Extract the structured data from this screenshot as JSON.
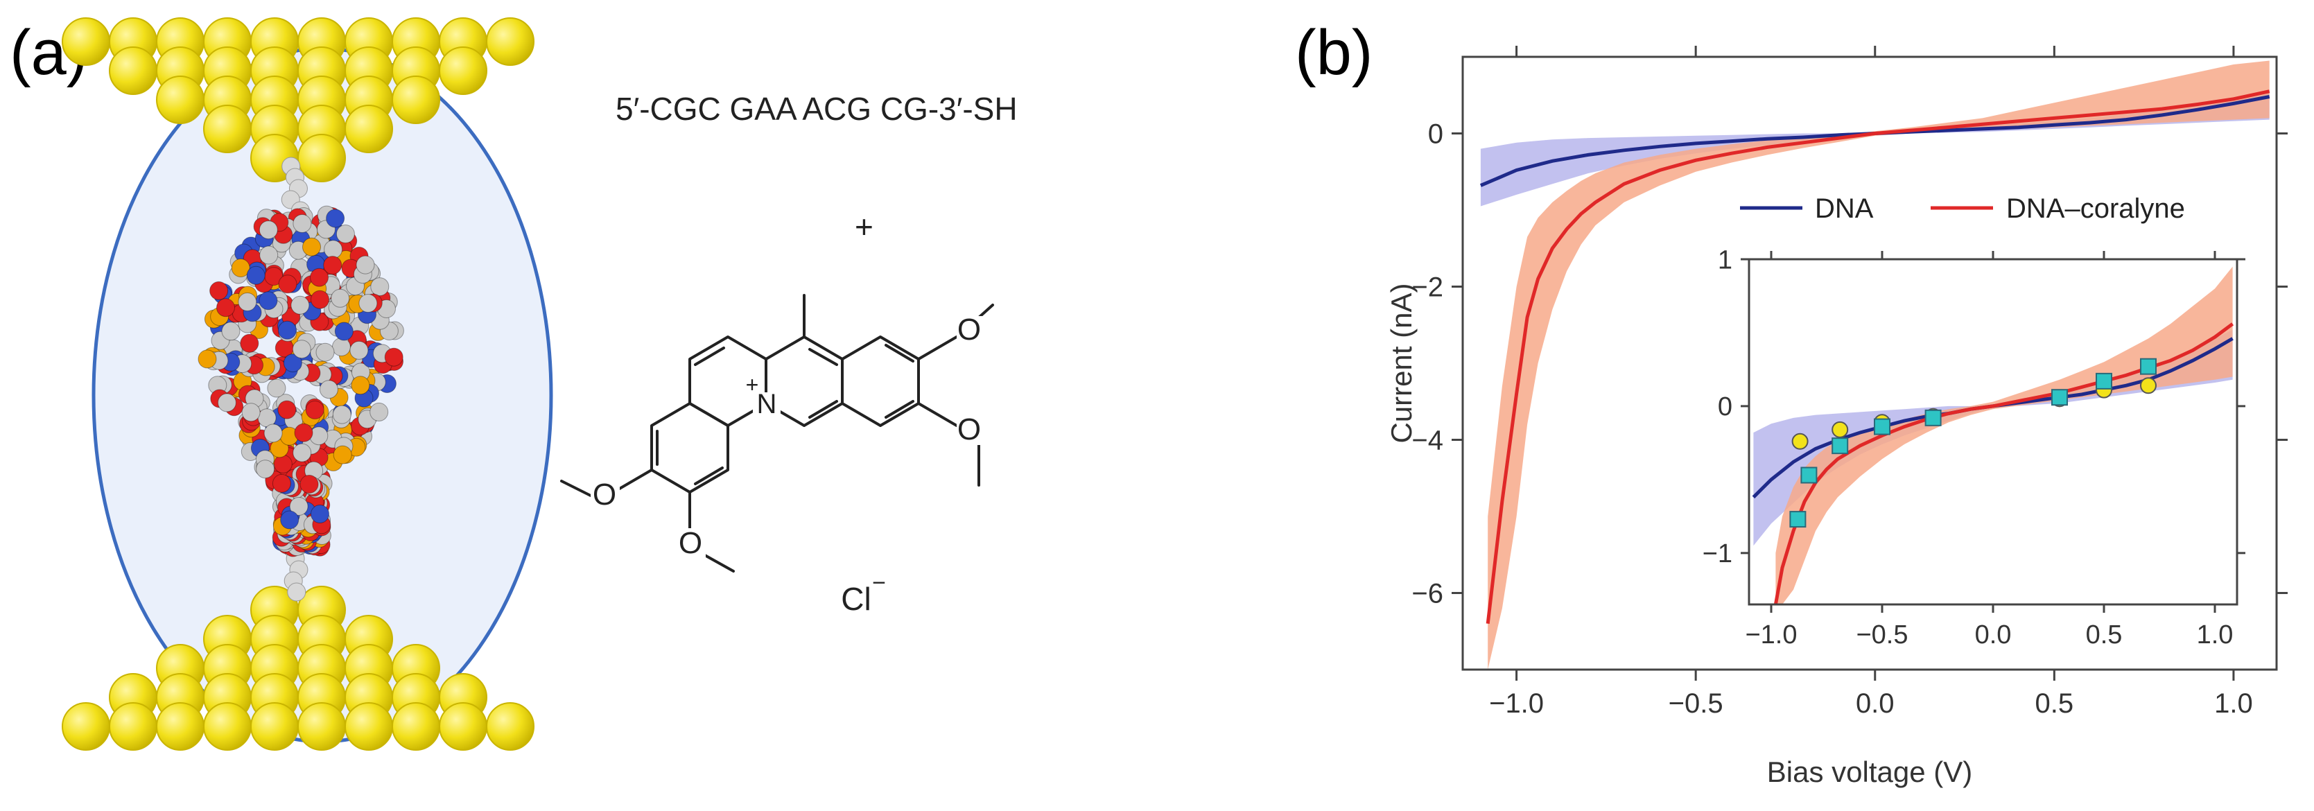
{
  "panel_a": {
    "label": "(a)",
    "sequence": "5′-CGC GAA ACG CG-3′-SH",
    "plus": "+",
    "counterion": "Cl",
    "counterion_charge": "−",
    "nitrogen": "N",
    "nitrogen_charge": "+",
    "oxygen": "O",
    "colors": {
      "gold": "#F2E01A",
      "gold_edge": "#C9B400",
      "ellipse_fill": "#EAF0FB",
      "ellipse_edge": "#3C6CC0",
      "oxygen_atom": "#E02020",
      "nitrogen_atom": "#3050C8",
      "carbon_atom": "#C8C8C8",
      "phosphorus_atom": "#F0A000"
    }
  },
  "panel_b": {
    "label": "(b)"
  },
  "chart_data": [
    {
      "type": "line",
      "title": "",
      "xlabel": "Bias voltage (V)",
      "ylabel": "Current (nA)",
      "xlim": [
        -1.15,
        1.12
      ],
      "ylim": [
        -7.0,
        1.0
      ],
      "xticks": [
        -1.0,
        -0.5,
        0.0,
        0.5,
        1.0
      ],
      "xtick_labels": [
        "−1.0",
        "−0.5",
        "0.0",
        "0.5",
        "1.0"
      ],
      "yticks": [
        0,
        -2,
        -4,
        -6
      ],
      "ytick_labels": [
        "0",
        "−2",
        "−4",
        "−6"
      ],
      "legend_placement": "top-right",
      "grid": false,
      "series": [
        {
          "name": "DNA",
          "color": "#1F2A8A",
          "band_color": "#B7B6EC",
          "x": [
            -1.1,
            -1.0,
            -0.9,
            -0.8,
            -0.7,
            -0.6,
            -0.5,
            -0.4,
            -0.3,
            -0.2,
            -0.1,
            0.0,
            0.1,
            0.2,
            0.3,
            0.4,
            0.5,
            0.6,
            0.7,
            0.8,
            0.9,
            1.0,
            1.1
          ],
          "y": [
            -0.68,
            -0.48,
            -0.36,
            -0.28,
            -0.22,
            -0.17,
            -0.13,
            -0.1,
            -0.07,
            -0.05,
            -0.02,
            0.0,
            0.02,
            0.04,
            0.06,
            0.08,
            0.11,
            0.14,
            0.18,
            0.24,
            0.31,
            0.39,
            0.48
          ],
          "upper": [
            -0.2,
            -0.12,
            -0.08,
            -0.06,
            -0.05,
            -0.04,
            -0.03,
            -0.02,
            -0.01,
            0.0,
            0.0,
            0.01,
            0.04,
            0.07,
            0.1,
            0.13,
            0.16,
            0.2,
            0.25,
            0.31,
            0.38,
            0.46,
            0.55
          ],
          "lower": [
            -0.95,
            -0.8,
            -0.66,
            -0.52,
            -0.42,
            -0.33,
            -0.26,
            -0.2,
            -0.15,
            -0.1,
            -0.05,
            -0.01,
            0.0,
            0.01,
            0.02,
            0.04,
            0.06,
            0.08,
            0.1,
            0.12,
            0.14,
            0.16,
            0.18
          ]
        },
        {
          "name": "DNA–coralyne",
          "color": "#E02828",
          "band_color": "#F7A98A",
          "x": [
            -1.08,
            -1.04,
            -1.0,
            -0.97,
            -0.94,
            -0.9,
            -0.86,
            -0.82,
            -0.78,
            -0.74,
            -0.7,
            -0.6,
            -0.5,
            -0.4,
            -0.3,
            -0.2,
            -0.1,
            0.0,
            0.1,
            0.2,
            0.3,
            0.4,
            0.5,
            0.6,
            0.7,
            0.8,
            0.9,
            1.0,
            1.1
          ],
          "y": [
            -6.4,
            -4.8,
            -3.4,
            -2.4,
            -1.9,
            -1.5,
            -1.25,
            -1.05,
            -0.9,
            -0.78,
            -0.66,
            -0.48,
            -0.35,
            -0.26,
            -0.18,
            -0.12,
            -0.06,
            0.0,
            0.04,
            0.08,
            0.12,
            0.16,
            0.2,
            0.24,
            0.28,
            0.32,
            0.38,
            0.45,
            0.55
          ],
          "upper": [
            -5.0,
            -3.3,
            -2.0,
            -1.35,
            -1.1,
            -0.9,
            -0.75,
            -0.62,
            -0.52,
            -0.45,
            -0.38,
            -0.28,
            -0.2,
            -0.14,
            -0.09,
            -0.05,
            -0.02,
            0.03,
            0.08,
            0.14,
            0.2,
            0.3,
            0.4,
            0.5,
            0.6,
            0.7,
            0.8,
            0.9,
            0.95
          ],
          "lower": [
            -7.0,
            -6.2,
            -5.0,
            -3.8,
            -3.0,
            -2.3,
            -1.8,
            -1.45,
            -1.2,
            -1.05,
            -0.9,
            -0.68,
            -0.5,
            -0.38,
            -0.28,
            -0.19,
            -0.11,
            -0.03,
            0.0,
            0.02,
            0.04,
            0.06,
            0.08,
            0.1,
            0.12,
            0.14,
            0.16,
            0.18,
            0.2
          ]
        }
      ]
    },
    {
      "type": "line",
      "title": "",
      "xlabel": "",
      "ylabel": "",
      "xlim": [
        -1.1,
        1.1
      ],
      "ylim": [
        -1.35,
        1.0
      ],
      "xticks": [
        -1.0,
        -0.5,
        0.0,
        0.5,
        1.0
      ],
      "xtick_labels": [
        "−1.0",
        "−0.5",
        "0.0",
        "0.5",
        "1.0"
      ],
      "yticks": [
        1,
        0,
        -1
      ],
      "ytick_labels": [
        "1",
        "0",
        "−1"
      ],
      "grid": false,
      "series": [
        {
          "name": "DNA",
          "color": "#1F2A8A",
          "band_color": "#B7B6EC",
          "x": [
            -1.08,
            -1.0,
            -0.9,
            -0.8,
            -0.7,
            -0.6,
            -0.5,
            -0.4,
            -0.3,
            -0.2,
            -0.1,
            0.0,
            0.1,
            0.2,
            0.3,
            0.4,
            0.5,
            0.6,
            0.7,
            0.8,
            0.9,
            1.0,
            1.08
          ],
          "y": [
            -0.62,
            -0.5,
            -0.38,
            -0.29,
            -0.23,
            -0.18,
            -0.14,
            -0.1,
            -0.07,
            -0.05,
            -0.02,
            0.0,
            0.02,
            0.04,
            0.06,
            0.08,
            0.11,
            0.14,
            0.18,
            0.24,
            0.31,
            0.39,
            0.46
          ],
          "upper": [
            -0.18,
            -0.12,
            -0.08,
            -0.06,
            -0.05,
            -0.04,
            -0.03,
            -0.02,
            -0.01,
            0.0,
            0.0,
            0.01,
            0.04,
            0.07,
            0.1,
            0.13,
            0.16,
            0.2,
            0.25,
            0.31,
            0.38,
            0.46,
            0.52
          ],
          "lower": [
            -0.95,
            -0.8,
            -0.66,
            -0.52,
            -0.42,
            -0.33,
            -0.26,
            -0.2,
            -0.15,
            -0.1,
            -0.05,
            -0.01,
            0.0,
            0.01,
            0.02,
            0.04,
            0.06,
            0.08,
            0.1,
            0.12,
            0.14,
            0.16,
            0.18
          ]
        },
        {
          "name": "DNA–coralyne",
          "color": "#E02828",
          "band_color": "#F7A98A",
          "x": [
            -0.98,
            -0.95,
            -0.9,
            -0.85,
            -0.8,
            -0.75,
            -0.7,
            -0.6,
            -0.5,
            -0.4,
            -0.3,
            -0.2,
            -0.1,
            0.0,
            0.1,
            0.2,
            0.3,
            0.4,
            0.5,
            0.6,
            0.7,
            0.8,
            0.9,
            1.0,
            1.08
          ],
          "y": [
            -1.35,
            -1.1,
            -0.85,
            -0.65,
            -0.52,
            -0.43,
            -0.36,
            -0.27,
            -0.2,
            -0.14,
            -0.09,
            -0.05,
            -0.02,
            0.0,
            0.03,
            0.06,
            0.09,
            0.13,
            0.17,
            0.21,
            0.26,
            0.31,
            0.38,
            0.47,
            0.56
          ],
          "upper": [
            -1.0,
            -0.75,
            -0.55,
            -0.42,
            -0.34,
            -0.28,
            -0.24,
            -0.18,
            -0.13,
            -0.09,
            -0.05,
            -0.02,
            0.0,
            0.03,
            0.08,
            0.13,
            0.18,
            0.24,
            0.3,
            0.38,
            0.46,
            0.56,
            0.68,
            0.8,
            0.95
          ],
          "lower": [
            -1.35,
            -1.35,
            -1.25,
            -1.05,
            -0.85,
            -0.72,
            -0.62,
            -0.48,
            -0.36,
            -0.26,
            -0.18,
            -0.11,
            -0.06,
            -0.02,
            0.0,
            0.02,
            0.04,
            0.06,
            0.08,
            0.1,
            0.12,
            0.14,
            0.16,
            0.18,
            0.2
          ]
        },
        {
          "name": "",
          "marker": "circle",
          "color": "#F2E21A",
          "x": [
            -0.87,
            -0.69,
            -0.5,
            -0.27,
            0.3,
            0.5,
            0.7
          ],
          "y": [
            -0.24,
            -0.16,
            -0.11,
            -0.07,
            0.05,
            0.11,
            0.14
          ]
        },
        {
          "name": "",
          "marker": "square",
          "color": "#2EC4C4",
          "x": [
            -0.88,
            -0.83,
            -0.69,
            -0.5,
            -0.27,
            0.3,
            0.5,
            0.7
          ],
          "y": [
            -0.77,
            -0.47,
            -0.27,
            -0.14,
            -0.08,
            0.06,
            0.17,
            0.27
          ]
        }
      ]
    }
  ]
}
